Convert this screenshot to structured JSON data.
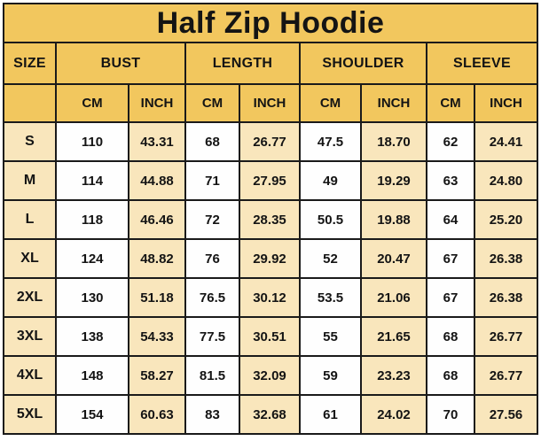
{
  "title": "Half Zip Hoodie",
  "chart_data": {
    "type": "table",
    "title": "Half Zip Hoodie",
    "size_column_header": "SIZE",
    "measure_groups": [
      "BUST",
      "LENGTH",
      "SHOULDER",
      "SLEEVE"
    ],
    "unit_headers": [
      "CM",
      "INCH",
      "CM",
      "INCH",
      "CM",
      "INCH",
      "CM",
      "INCH"
    ],
    "rows": [
      {
        "size": "S",
        "values": [
          "110",
          "43.31",
          "68",
          "26.77",
          "47.5",
          "18.70",
          "62",
          "24.41"
        ]
      },
      {
        "size": "M",
        "values": [
          "114",
          "44.88",
          "71",
          "27.95",
          "49",
          "19.29",
          "63",
          "24.80"
        ]
      },
      {
        "size": "L",
        "values": [
          "118",
          "46.46",
          "72",
          "28.35",
          "50.5",
          "19.88",
          "64",
          "25.20"
        ]
      },
      {
        "size": "XL",
        "values": [
          "124",
          "48.82",
          "76",
          "29.92",
          "52",
          "20.47",
          "67",
          "26.38"
        ]
      },
      {
        "size": "2XL",
        "values": [
          "130",
          "51.18",
          "76.5",
          "30.12",
          "53.5",
          "21.06",
          "67",
          "26.38"
        ]
      },
      {
        "size": "3XL",
        "values": [
          "138",
          "54.33",
          "77.5",
          "30.51",
          "55",
          "21.65",
          "68",
          "26.77"
        ]
      },
      {
        "size": "4XL",
        "values": [
          "148",
          "58.27",
          "81.5",
          "32.09",
          "59",
          "23.23",
          "68",
          "26.77"
        ]
      },
      {
        "size": "5XL",
        "values": [
          "154",
          "60.63",
          "83",
          "32.68",
          "61",
          "24.02",
          "70",
          "27.56"
        ]
      }
    ]
  },
  "colors": {
    "gold": "#f2c75e",
    "cream": "#f9e6bc",
    "cellwhite": "#fefefe",
    "border": "#1a1a1a",
    "text": "#141414"
  }
}
